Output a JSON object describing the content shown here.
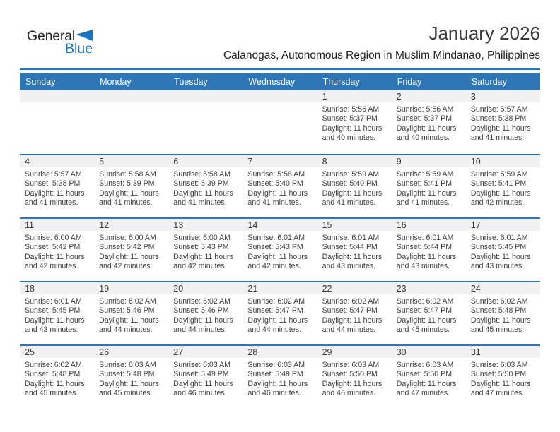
{
  "logo": {
    "general": "General",
    "blue": "Blue"
  },
  "header": {
    "title": "January 2026",
    "subtitle": "Calanogas, Autonomous Region in Muslim Mindanao, Philippines"
  },
  "weekdays": [
    "Sunday",
    "Monday",
    "Tuesday",
    "Wednesday",
    "Thursday",
    "Friday",
    "Saturday"
  ],
  "colors": {
    "accent": "#2E75B5",
    "logo_blue": "#1C75BC",
    "strip": "#F1F1F1",
    "weekday_text": "#FFFFFF"
  },
  "weeks": [
    [
      null,
      null,
      null,
      null,
      {
        "n": 1,
        "lines": [
          "Sunrise: 5:56 AM",
          "Sunset: 5:37 PM",
          "Daylight: 11 hours",
          "and 40 minutes."
        ]
      },
      {
        "n": 2,
        "lines": [
          "Sunrise: 5:56 AM",
          "Sunset: 5:37 PM",
          "Daylight: 11 hours",
          "and 40 minutes."
        ]
      },
      {
        "n": 3,
        "lines": [
          "Sunrise: 5:57 AM",
          "Sunset: 5:38 PM",
          "Daylight: 11 hours",
          "and 41 minutes."
        ]
      }
    ],
    [
      {
        "n": 4,
        "lines": [
          "Sunrise: 5:57 AM",
          "Sunset: 5:38 PM",
          "Daylight: 11 hours",
          "and 41 minutes."
        ]
      },
      {
        "n": 5,
        "lines": [
          "Sunrise: 5:58 AM",
          "Sunset: 5:39 PM",
          "Daylight: 11 hours",
          "and 41 minutes."
        ]
      },
      {
        "n": 6,
        "lines": [
          "Sunrise: 5:58 AM",
          "Sunset: 5:39 PM",
          "Daylight: 11 hours",
          "and 41 minutes."
        ]
      },
      {
        "n": 7,
        "lines": [
          "Sunrise: 5:58 AM",
          "Sunset: 5:40 PM",
          "Daylight: 11 hours",
          "and 41 minutes."
        ]
      },
      {
        "n": 8,
        "lines": [
          "Sunrise: 5:59 AM",
          "Sunset: 5:40 PM",
          "Daylight: 11 hours",
          "and 41 minutes."
        ]
      },
      {
        "n": 9,
        "lines": [
          "Sunrise: 5:59 AM",
          "Sunset: 5:41 PM",
          "Daylight: 11 hours",
          "and 41 minutes."
        ]
      },
      {
        "n": 10,
        "lines": [
          "Sunrise: 5:59 AM",
          "Sunset: 5:41 PM",
          "Daylight: 11 hours",
          "and 42 minutes."
        ]
      }
    ],
    [
      {
        "n": 11,
        "lines": [
          "Sunrise: 6:00 AM",
          "Sunset: 5:42 PM",
          "Daylight: 11 hours",
          "and 42 minutes."
        ]
      },
      {
        "n": 12,
        "lines": [
          "Sunrise: 6:00 AM",
          "Sunset: 5:42 PM",
          "Daylight: 11 hours",
          "and 42 minutes."
        ]
      },
      {
        "n": 13,
        "lines": [
          "Sunrise: 6:00 AM",
          "Sunset: 5:43 PM",
          "Daylight: 11 hours",
          "and 42 minutes."
        ]
      },
      {
        "n": 14,
        "lines": [
          "Sunrise: 6:01 AM",
          "Sunset: 5:43 PM",
          "Daylight: 11 hours",
          "and 42 minutes."
        ]
      },
      {
        "n": 15,
        "lines": [
          "Sunrise: 6:01 AM",
          "Sunset: 5:44 PM",
          "Daylight: 11 hours",
          "and 43 minutes."
        ]
      },
      {
        "n": 16,
        "lines": [
          "Sunrise: 6:01 AM",
          "Sunset: 5:44 PM",
          "Daylight: 11 hours",
          "and 43 minutes."
        ]
      },
      {
        "n": 17,
        "lines": [
          "Sunrise: 6:01 AM",
          "Sunset: 5:45 PM",
          "Daylight: 11 hours",
          "and 43 minutes."
        ]
      }
    ],
    [
      {
        "n": 18,
        "lines": [
          "Sunrise: 6:01 AM",
          "Sunset: 5:45 PM",
          "Daylight: 11 hours",
          "and 43 minutes."
        ]
      },
      {
        "n": 19,
        "lines": [
          "Sunrise: 6:02 AM",
          "Sunset: 5:46 PM",
          "Daylight: 11 hours",
          "and 44 minutes."
        ]
      },
      {
        "n": 20,
        "lines": [
          "Sunrise: 6:02 AM",
          "Sunset: 5:46 PM",
          "Daylight: 11 hours",
          "and 44 minutes."
        ]
      },
      {
        "n": 21,
        "lines": [
          "Sunrise: 6:02 AM",
          "Sunset: 5:47 PM",
          "Daylight: 11 hours",
          "and 44 minutes."
        ]
      },
      {
        "n": 22,
        "lines": [
          "Sunrise: 6:02 AM",
          "Sunset: 5:47 PM",
          "Daylight: 11 hours",
          "and 44 minutes."
        ]
      },
      {
        "n": 23,
        "lines": [
          "Sunrise: 6:02 AM",
          "Sunset: 5:47 PM",
          "Daylight: 11 hours",
          "and 45 minutes."
        ]
      },
      {
        "n": 24,
        "lines": [
          "Sunrise: 6:02 AM",
          "Sunset: 5:48 PM",
          "Daylight: 11 hours",
          "and 45 minutes."
        ]
      }
    ],
    [
      {
        "n": 25,
        "lines": [
          "Sunrise: 6:02 AM",
          "Sunset: 5:48 PM",
          "Daylight: 11 hours",
          "and 45 minutes."
        ]
      },
      {
        "n": 26,
        "lines": [
          "Sunrise: 6:03 AM",
          "Sunset: 5:48 PM",
          "Daylight: 11 hours",
          "and 45 minutes."
        ]
      },
      {
        "n": 27,
        "lines": [
          "Sunrise: 6:03 AM",
          "Sunset: 5:49 PM",
          "Daylight: 11 hours",
          "and 46 minutes."
        ]
      },
      {
        "n": 28,
        "lines": [
          "Sunrise: 6:03 AM",
          "Sunset: 5:49 PM",
          "Daylight: 11 hours",
          "and 46 minutes."
        ]
      },
      {
        "n": 29,
        "lines": [
          "Sunrise: 6:03 AM",
          "Sunset: 5:50 PM",
          "Daylight: 11 hours",
          "and 46 minutes."
        ]
      },
      {
        "n": 30,
        "lines": [
          "Sunrise: 6:03 AM",
          "Sunset: 5:50 PM",
          "Daylight: 11 hours",
          "and 47 minutes."
        ]
      },
      {
        "n": 31,
        "lines": [
          "Sunrise: 6:03 AM",
          "Sunset: 5:50 PM",
          "Daylight: 11 hours",
          "and 47 minutes."
        ]
      }
    ]
  ]
}
